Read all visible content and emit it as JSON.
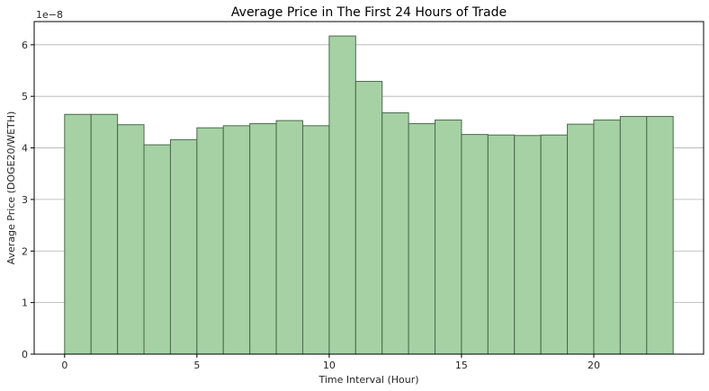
{
  "chart_data": {
    "type": "bar",
    "title": "Average Price in The First 24 Hours of Trade",
    "xlabel": "Time Interval (Hour)",
    "ylabel": "Average Price (DOGE20/WETH)",
    "y_offset_label": "1e−8",
    "x": [
      0,
      1,
      2,
      3,
      4,
      5,
      6,
      7,
      8,
      9,
      10,
      11,
      12,
      13,
      14,
      15,
      16,
      17,
      18,
      19,
      20,
      21,
      22
    ],
    "values": [
      4.65,
      4.65,
      4.45,
      4.06,
      4.16,
      4.39,
      4.43,
      4.47,
      4.53,
      4.43,
      6.17,
      5.29,
      4.68,
      4.47,
      4.54,
      4.26,
      4.25,
      4.24,
      4.25,
      4.46,
      4.54,
      4.61,
      4.61
    ],
    "bar_width": 1,
    "xlim": [
      -1.15,
      24.15
    ],
    "ylim": [
      0,
      6.45
    ],
    "xticks": [
      0,
      5,
      10,
      15,
      20
    ],
    "xtick_labels": [
      "0",
      "5",
      "10",
      "15",
      "20"
    ],
    "yticks": [
      0,
      1,
      2,
      3,
      4,
      5,
      6
    ],
    "ytick_labels": [
      "0",
      "1",
      "2",
      "3",
      "4",
      "5",
      "6"
    ],
    "grid": "y",
    "bar_color": "#a5d1a5",
    "bar_edge_color": "#4a6a4a"
  }
}
